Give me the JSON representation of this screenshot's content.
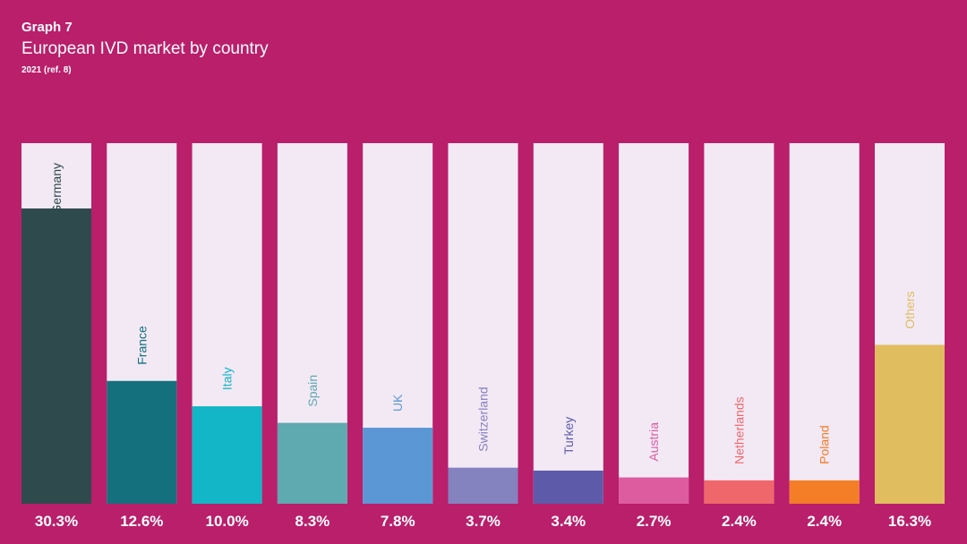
{
  "header": {
    "graph_label": "Graph 7",
    "title": "European IVD market by country",
    "subtitle": "2021 (ref. 8)"
  },
  "colors": {
    "background": "#b91f6b",
    "bar_track": "#f2e9f5"
  },
  "chart_data": {
    "type": "bar",
    "categories": [
      "Germany",
      "France",
      "Italy",
      "Spain",
      "UK",
      "Switzerland",
      "Turkey",
      "Austria",
      "Netherlands",
      "Poland",
      "Others"
    ],
    "values": [
      30.3,
      12.6,
      10.0,
      8.3,
      7.8,
      3.7,
      3.4,
      2.7,
      2.4,
      2.4,
      16.3
    ],
    "value_labels": [
      "30.3%",
      "12.6%",
      "10.0%",
      "8.3%",
      "7.8%",
      "3.7%",
      "3.4%",
      "2.7%",
      "2.4%",
      "2.4%",
      "16.3%"
    ],
    "ylim": [
      0,
      37
    ],
    "colors": [
      "#2f4a4d",
      "#14707d",
      "#12b6c6",
      "#5fa9b0",
      "#5b97d4",
      "#8582c0",
      "#5d5aaa",
      "#dd5ca0",
      "#f0676b",
      "#f47d27",
      "#e0bd5f"
    ],
    "label_colors": [
      "#2f4a4d",
      "#14707d",
      "#12b6c6",
      "#5fa9b0",
      "#5b97d4",
      "#8582c0",
      "#5d5aaa",
      "#dd5ca0",
      "#f0676b",
      "#f47d27",
      "#e0bd5f"
    ]
  }
}
